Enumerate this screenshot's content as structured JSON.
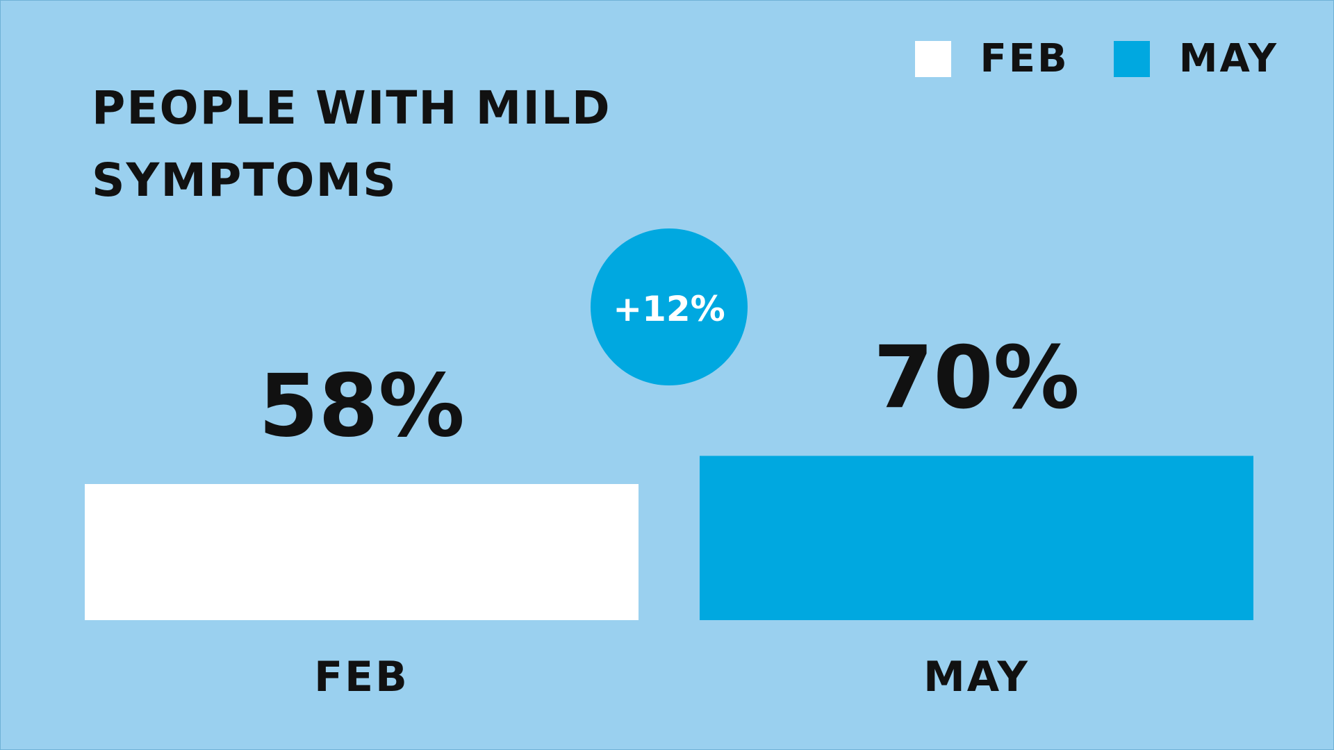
{
  "title_lines": [
    "PEOPLE WITH MILD",
    "SYMPTOMS"
  ],
  "colors": {
    "background": "#9ad0ef",
    "feb": "#ffffff",
    "may": "#00a8e0",
    "text": "#111111",
    "badge_text": "#ffffff"
  },
  "legend": [
    {
      "label": "FEB",
      "color": "#ffffff"
    },
    {
      "label": "MAY",
      "color": "#00a8e0"
    }
  ],
  "change_badge": "+12%",
  "chart_data": {
    "type": "bar",
    "title": "PEOPLE WITH MILD SYMPTOMS",
    "categories": [
      "FEB",
      "MAY"
    ],
    "values": [
      58,
      70
    ],
    "value_labels": [
      "58%",
      "70%"
    ],
    "colors": [
      "#ffffff",
      "#00a8e0"
    ],
    "unit": "%",
    "annotation": "+12%",
    "legend_position": "top-right",
    "grid": false
  }
}
